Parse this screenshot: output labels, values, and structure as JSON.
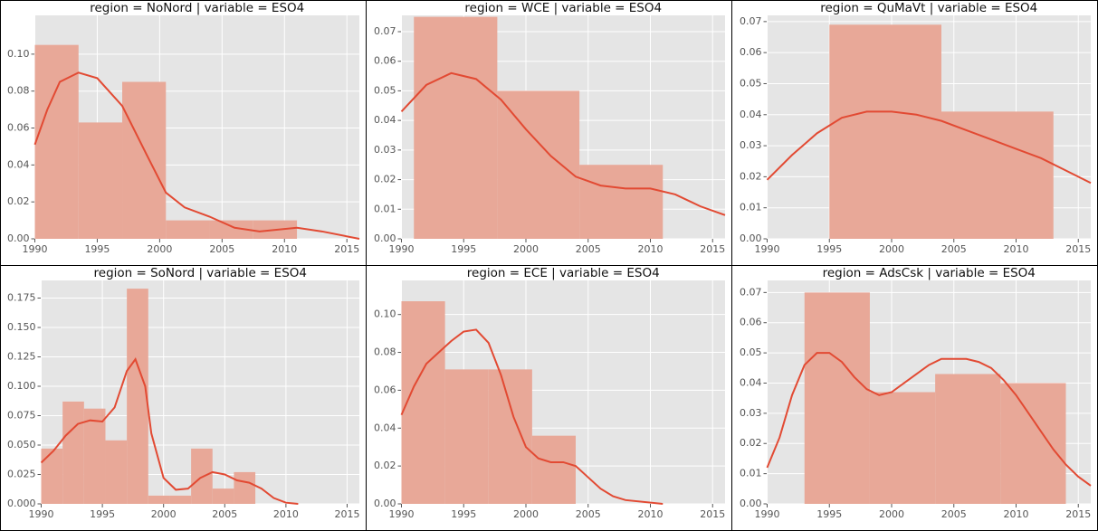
{
  "chart_data": [
    {
      "type": "histogram",
      "title": "region = NoNord | variable = ESO4",
      "bins": [
        1990,
        1993.5,
        1997,
        2000.5,
        2004,
        2007.5,
        2011
      ],
      "values": [
        0.105,
        0.063,
        0.085,
        0.01,
        0.01,
        0.01
      ],
      "color": "#e8a898",
      "line": {
        "x": [
          1990,
          1991,
          1992,
          1993.5,
          1995,
          1997,
          1999,
          2000.5,
          2002,
          2004,
          2006,
          2008,
          2011,
          2013,
          2016
        ],
        "values": [
          0.051,
          0.07,
          0.085,
          0.09,
          0.087,
          0.072,
          0.045,
          0.025,
          0.017,
          0.012,
          0.006,
          0.004,
          0.006,
          0.004,
          0.0
        ],
        "color": "#e24a33"
      },
      "xlim": [
        1990,
        2016
      ],
      "xticks": [
        1990,
        1995,
        2000,
        2005,
        2010,
        2015
      ],
      "ylim": [
        0,
        0.121
      ],
      "yticks": [
        {
          "value": 0,
          "label": "0.00"
        },
        {
          "value": 0.02,
          "label": "0.02"
        },
        {
          "value": 0.04,
          "label": "0.04"
        },
        {
          "value": 0.06,
          "label": "0.06"
        },
        {
          "value": 0.08,
          "label": "0.08"
        },
        {
          "value": 0.1,
          "label": "0.10"
        }
      ],
      "grid": true
    },
    {
      "type": "histogram",
      "title": "region = WCE | variable = ESO4",
      "bins": [
        1991,
        1997.7,
        2004.3,
        2011
      ],
      "values": [
        0.075,
        0.05,
        0.025
      ],
      "color": "#e8a898",
      "line": {
        "x": [
          1990,
          1992,
          1994,
          1996,
          1998,
          2000,
          2002,
          2004,
          2006,
          2008,
          2010,
          2012,
          2014,
          2016
        ],
        "values": [
          0.043,
          0.052,
          0.056,
          0.054,
          0.047,
          0.037,
          0.028,
          0.021,
          0.018,
          0.017,
          0.017,
          0.015,
          0.011,
          0.008
        ],
        "color": "#e24a33"
      },
      "xlim": [
        1990,
        2016
      ],
      "xticks": [
        1990,
        1995,
        2000,
        2005,
        2010,
        2015
      ],
      "ylim": [
        0,
        0.0755
      ],
      "yticks": [
        {
          "value": 0,
          "label": "0.00"
        },
        {
          "value": 0.01,
          "label": "0.01"
        },
        {
          "value": 0.02,
          "label": "0.02"
        },
        {
          "value": 0.03,
          "label": "0.03"
        },
        {
          "value": 0.04,
          "label": "0.04"
        },
        {
          "value": 0.05,
          "label": "0.05"
        },
        {
          "value": 0.06,
          "label": "0.06"
        },
        {
          "value": 0.07,
          "label": "0.07"
        }
      ],
      "grid": true
    },
    {
      "type": "histogram",
      "title": "region = QuMaVt | variable = ESO4",
      "bins": [
        1995,
        2004,
        2013
      ],
      "values": [
        0.069,
        0.041
      ],
      "color": "#e8a898",
      "line": {
        "x": [
          1990,
          1992,
          1994,
          1996,
          1998,
          2000,
          2002,
          2004,
          2006,
          2008,
          2010,
          2012,
          2014,
          2016
        ],
        "values": [
          0.019,
          0.027,
          0.034,
          0.039,
          0.041,
          0.041,
          0.04,
          0.038,
          0.035,
          0.032,
          0.029,
          0.026,
          0.022,
          0.018
        ],
        "color": "#e24a33"
      },
      "xlim": [
        1990,
        2016
      ],
      "xticks": [
        1990,
        1995,
        2000,
        2005,
        2010,
        2015
      ],
      "ylim": [
        0,
        0.072
      ],
      "yticks": [
        {
          "value": 0,
          "label": "0.00"
        },
        {
          "value": 0.01,
          "label": "0.01"
        },
        {
          "value": 0.02,
          "label": "0.02"
        },
        {
          "value": 0.03,
          "label": "0.03"
        },
        {
          "value": 0.04,
          "label": "0.04"
        },
        {
          "value": 0.05,
          "label": "0.05"
        },
        {
          "value": 0.06,
          "label": "0.06"
        },
        {
          "value": 0.07,
          "label": "0.07"
        }
      ],
      "grid": true
    },
    {
      "type": "histogram",
      "title": "region = SoNord | variable = ESO4",
      "bins": [
        1990,
        1991.75,
        1993.5,
        1995.25,
        1997,
        1998.75,
        2000.5,
        2002.25,
        2004,
        2005.75,
        2007.5
      ],
      "values": [
        0.047,
        0.087,
        0.081,
        0.054,
        0.183,
        0.007,
        0.007,
        0.047,
        0.013,
        0.027
      ],
      "color": "#e8a898",
      "line": {
        "x": [
          1990,
          1991,
          1992,
          1993,
          1994,
          1995,
          1996,
          1997,
          1997.7,
          1998.5,
          1999,
          2000,
          2001,
          2002,
          2003,
          2004,
          2005,
          2006,
          2007,
          2008,
          2009,
          2010,
          2011
        ],
        "values": [
          0.035,
          0.045,
          0.058,
          0.068,
          0.071,
          0.07,
          0.082,
          0.113,
          0.123,
          0.1,
          0.06,
          0.022,
          0.012,
          0.013,
          0.022,
          0.027,
          0.025,
          0.02,
          0.018,
          0.013,
          0.005,
          0.001,
          0
        ],
        "color": "#e24a33"
      },
      "xlim": [
        1990,
        2016
      ],
      "xticks": [
        1990,
        1995,
        2000,
        2005,
        2010,
        2015
      ],
      "ylim": [
        0,
        0.19
      ],
      "yticks": [
        {
          "value": 0,
          "label": "0.000"
        },
        {
          "value": 0.025,
          "label": "0.025"
        },
        {
          "value": 0.05,
          "label": "0.050"
        },
        {
          "value": 0.075,
          "label": "0.075"
        },
        {
          "value": 0.1,
          "label": "0.100"
        },
        {
          "value": 0.125,
          "label": "0.125"
        },
        {
          "value": 0.15,
          "label": "0.150"
        },
        {
          "value": 0.175,
          "label": "0.175"
        }
      ],
      "grid": true
    },
    {
      "type": "histogram",
      "title": "region = ECE | variable = ESO4",
      "bins": [
        1990,
        1993.5,
        1997,
        2000.5,
        2004
      ],
      "values": [
        0.107,
        0.071,
        0.071,
        0.036
      ],
      "color": "#e8a898",
      "line": {
        "x": [
          1990,
          1991,
          1992,
          1993,
          1994,
          1995,
          1996,
          1997,
          1998,
          1999,
          2000,
          2001,
          2002,
          2003,
          2004,
          2005,
          2006,
          2007,
          2008,
          2011
        ],
        "values": [
          0.047,
          0.062,
          0.074,
          0.08,
          0.086,
          0.091,
          0.092,
          0.085,
          0.068,
          0.046,
          0.03,
          0.024,
          0.022,
          0.022,
          0.02,
          0.014,
          0.008,
          0.004,
          0.002,
          0
        ],
        "color": "#e24a33"
      },
      "xlim": [
        1990,
        2016
      ],
      "xticks": [
        1990,
        1995,
        2000,
        2005,
        2010,
        2015
      ],
      "ylim": [
        0,
        0.118
      ],
      "yticks": [
        {
          "value": 0,
          "label": "0.00"
        },
        {
          "value": 0.02,
          "label": "0.02"
        },
        {
          "value": 0.04,
          "label": "0.04"
        },
        {
          "value": 0.06,
          "label": "0.06"
        },
        {
          "value": 0.08,
          "label": "0.08"
        },
        {
          "value": 0.1,
          "label": "0.10"
        }
      ],
      "grid": true
    },
    {
      "type": "histogram",
      "title": "region = AdsCsk | variable = ESO4",
      "bins": [
        1993,
        1998.25,
        2003.5,
        2008.75,
        2014
      ],
      "values": [
        0.07,
        0.037,
        0.043,
        0.04
      ],
      "color": "#e8a898",
      "line": {
        "x": [
          1990,
          1991,
          1992,
          1993,
          1994,
          1995,
          1996,
          1997,
          1998,
          1999,
          2000,
          2001,
          2002,
          2003,
          2004,
          2005,
          2006,
          2007,
          2008,
          2009,
          2010,
          2011,
          2012,
          2013,
          2014,
          2015,
          2016
        ],
        "values": [
          0.012,
          0.022,
          0.036,
          0.046,
          0.05,
          0.05,
          0.047,
          0.042,
          0.038,
          0.036,
          0.037,
          0.04,
          0.043,
          0.046,
          0.048,
          0.048,
          0.048,
          0.047,
          0.045,
          0.041,
          0.036,
          0.03,
          0.024,
          0.018,
          0.013,
          0.009,
          0.006
        ],
        "color": "#e24a33"
      },
      "xlim": [
        1990,
        2016
      ],
      "xticks": [
        1990,
        1995,
        2000,
        2005,
        2010,
        2015
      ],
      "ylim": [
        0,
        0.074
      ],
      "yticks": [
        {
          "value": 0,
          "label": "0.00"
        },
        {
          "value": 0.01,
          "label": "0.01"
        },
        {
          "value": 0.02,
          "label": "0.02"
        },
        {
          "value": 0.03,
          "label": "0.03"
        },
        {
          "value": 0.04,
          "label": "0.04"
        },
        {
          "value": 0.05,
          "label": "0.05"
        },
        {
          "value": 0.06,
          "label": "0.06"
        },
        {
          "value": 0.07,
          "label": "0.07"
        }
      ],
      "grid": true
    }
  ]
}
